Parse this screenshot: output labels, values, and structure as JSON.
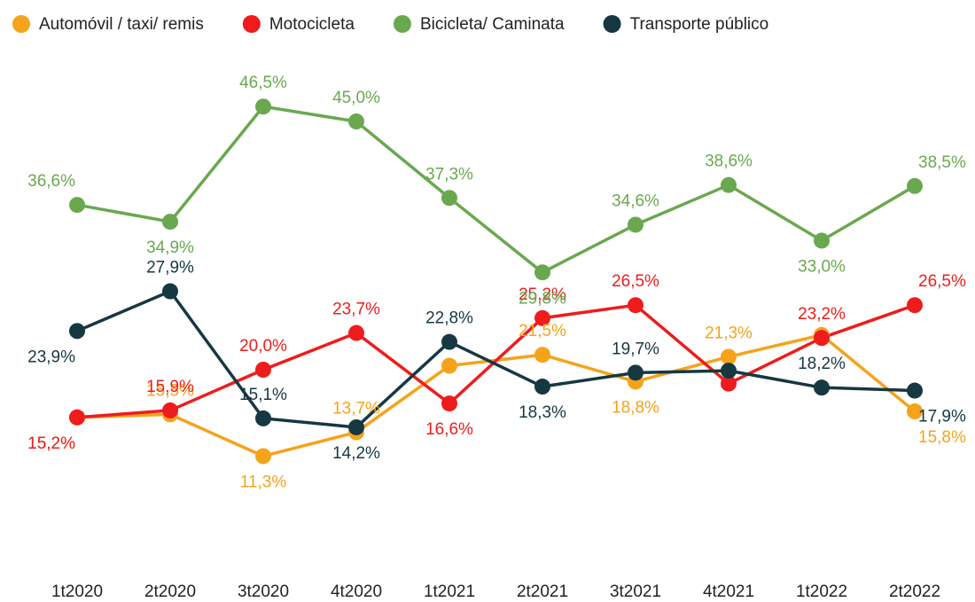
{
  "chart_data": {
    "type": "line",
    "categories": [
      "1t2020",
      "2t2020",
      "3t2020",
      "4t2020",
      "1t2021",
      "2t2021",
      "3t2021",
      "4t2021",
      "1t2022",
      "2t2022"
    ],
    "ylim": [
      0,
      50
    ],
    "series": [
      {
        "name": "Automóvil / taxi/ remis",
        "color": "#f5a31a",
        "values": [
          15.2,
          15.5,
          11.3,
          13.7,
          20.4,
          21.5,
          18.8,
          21.3,
          23.5,
          15.8
        ],
        "value_labels": [
          "15,2%",
          "15,5%",
          "11,3%",
          "13,7%",
          null,
          "21,5%",
          "18,8%",
          "21,3%",
          null,
          "15,8%"
        ]
      },
      {
        "name": "Motocicleta",
        "color": "#ee1c1c",
        "values": [
          15.2,
          15.9,
          20.0,
          23.7,
          16.6,
          25.2,
          26.5,
          18.6,
          23.2,
          26.5
        ],
        "value_labels": [
          "15,2%",
          "15,9%",
          "20,0%",
          "23,7%",
          "16,6%",
          "25,2%",
          "26,5%",
          null,
          "23,2%",
          "26,5%"
        ]
      },
      {
        "name": "Bicicleta/ Caminata",
        "color": "#6aa84f",
        "values": [
          36.6,
          34.9,
          46.5,
          45.0,
          37.3,
          29.8,
          34.6,
          38.6,
          33.0,
          38.5
        ],
        "value_labels": [
          "36,6%",
          "34,9%",
          "46,5%",
          "45,0%",
          "37,3%",
          "29,8%",
          "34,6%",
          "38,6%",
          "33,0%",
          "38,5%"
        ]
      },
      {
        "name": "Transporte público",
        "color": "#153841",
        "values": [
          23.9,
          27.9,
          15.1,
          14.2,
          22.8,
          18.3,
          19.7,
          19.9,
          18.2,
          17.9
        ],
        "value_labels": [
          "23,9%",
          "27,9%",
          "15,1%",
          "14,2%",
          "22,8%",
          "18,3%",
          "19,7%",
          null,
          "18,2%",
          "17,9%"
        ]
      }
    ]
  }
}
